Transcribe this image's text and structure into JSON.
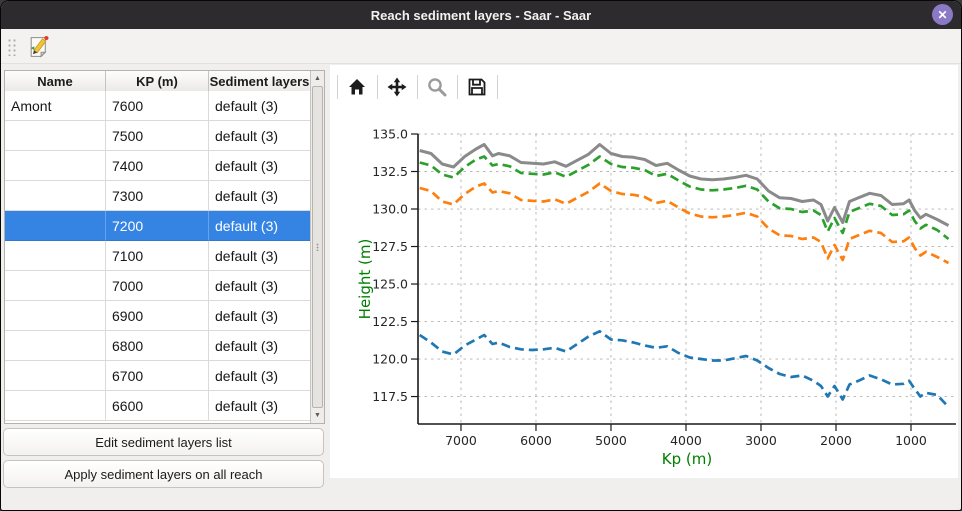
{
  "window": {
    "title": "Reach sediment layers - Saar - Saar",
    "close_glyph": "✕"
  },
  "main_toolbar": {
    "edit_icon": "edit-sediment-document-icon"
  },
  "table": {
    "columns": [
      "Name",
      "KP (m)",
      "Sediment layers"
    ],
    "rows": [
      {
        "name": "Amont",
        "kp": "7600",
        "layers": "default (3)",
        "selected": false
      },
      {
        "name": "",
        "kp": "7500",
        "layers": "default (3)",
        "selected": false
      },
      {
        "name": "",
        "kp": "7400",
        "layers": "default (3)",
        "selected": false
      },
      {
        "name": "",
        "kp": "7300",
        "layers": "default (3)",
        "selected": false
      },
      {
        "name": "",
        "kp": "7200",
        "layers": "default (3)",
        "selected": true
      },
      {
        "name": "",
        "kp": "7100",
        "layers": "default (3)",
        "selected": false
      },
      {
        "name": "",
        "kp": "7000",
        "layers": "default (3)",
        "selected": false
      },
      {
        "name": "",
        "kp": "6900",
        "layers": "default (3)",
        "selected": false
      },
      {
        "name": "",
        "kp": "6800",
        "layers": "default (3)",
        "selected": false
      },
      {
        "name": "",
        "kp": "6700",
        "layers": "default (3)",
        "selected": false
      },
      {
        "name": "",
        "kp": "6600",
        "layers": "default (3)",
        "selected": false
      }
    ],
    "scrollbar": {
      "up_glyph": "▲",
      "down_glyph": "▼"
    }
  },
  "buttons": {
    "edit_layers": "Edit sediment layers list",
    "apply_layers": "Apply sediment layers on all reach"
  },
  "plot_toolbar": {
    "icons": [
      "home-icon",
      "pan-arrows-icon",
      "zoom-magnifier-icon",
      "save-floppy-icon"
    ]
  },
  "colors": {
    "selection_blue": "#3584e4",
    "titlebar": "#2d2b2d",
    "close_button_purple": "#8b79c6",
    "axis_label_green": "#008000"
  },
  "chart_data": {
    "type": "line",
    "title": "",
    "xlabel": "Kp (m)",
    "ylabel": "Height (m)",
    "axis_label_color": "#008000",
    "grid": true,
    "x_axis_reversed": true,
    "xlim": [
      7573,
      400
    ],
    "ylim": [
      115.67,
      135.0
    ],
    "x_ticks": [
      7000,
      6000,
      5000,
      4000,
      3000,
      2000,
      1000
    ],
    "y_ticks": [
      135.0,
      132.5,
      130.0,
      127.5,
      125.0,
      122.5,
      120.0,
      117.5
    ],
    "x": [
      7550,
      7400,
      7250,
      7100,
      6950,
      6800,
      6690,
      6580,
      6500,
      6350,
      6200,
      6050,
      5900,
      5750,
      5600,
      5450,
      5300,
      5150,
      5000,
      4850,
      4700,
      4550,
      4400,
      4250,
      4100,
      3950,
      3800,
      3650,
      3500,
      3350,
      3200,
      3050,
      2900,
      2750,
      2600,
      2450,
      2300,
      2200,
      2110,
      2020,
      1910,
      1820,
      1700,
      1550,
      1400,
      1250,
      1100,
      1025,
      950,
      875,
      800,
      650,
      500
    ],
    "series": [
      {
        "name": "blue-dashed-line",
        "color": "#1f77b4",
        "style": "dashed",
        "width": 2.7,
        "values": [
          121.6,
          121.1,
          120.5,
          120.3,
          120.9,
          121.3,
          121.6,
          121.0,
          121.1,
          120.8,
          120.65,
          120.6,
          120.65,
          120.75,
          120.5,
          121.0,
          121.5,
          121.85,
          121.3,
          121.25,
          121.1,
          120.9,
          120.75,
          120.85,
          120.4,
          120.1,
          120.0,
          119.9,
          119.9,
          120.05,
          120.2,
          119.9,
          119.4,
          119.0,
          118.8,
          118.9,
          118.55,
          118.2,
          117.5,
          118.2,
          117.3,
          118.3,
          118.55,
          118.9,
          118.65,
          118.3,
          118.35,
          118.55,
          118.0,
          117.5,
          117.75,
          117.6,
          116.8
        ]
      },
      {
        "name": "orange-dashed-line",
        "color": "#ff7f0e",
        "style": "dashed",
        "width": 2.7,
        "values": [
          131.4,
          131.2,
          130.5,
          130.3,
          131.0,
          131.5,
          131.7,
          131.1,
          131.2,
          131.05,
          130.6,
          130.55,
          130.5,
          130.65,
          130.35,
          130.75,
          131.15,
          131.7,
          131.2,
          131.0,
          130.95,
          130.8,
          130.4,
          130.55,
          130.1,
          129.7,
          129.5,
          129.45,
          129.5,
          129.6,
          129.75,
          129.5,
          128.7,
          128.25,
          128.2,
          128.0,
          128.1,
          127.8,
          126.7,
          127.6,
          126.6,
          128.0,
          128.25,
          128.55,
          128.4,
          127.8,
          127.85,
          128.1,
          127.4,
          126.9,
          127.15,
          126.8,
          126.4
        ]
      },
      {
        "name": "green-dashed-line",
        "color": "#2ca02c",
        "style": "dashed",
        "width": 2.7,
        "values": [
          133.1,
          132.9,
          132.3,
          132.1,
          132.8,
          133.3,
          133.5,
          132.9,
          133.0,
          132.85,
          132.4,
          132.35,
          132.3,
          132.45,
          132.15,
          132.55,
          132.95,
          133.5,
          133.0,
          132.8,
          132.75,
          132.6,
          132.2,
          132.35,
          131.9,
          131.5,
          131.3,
          131.25,
          131.3,
          131.4,
          131.55,
          131.3,
          130.5,
          130.05,
          130.0,
          129.8,
          129.9,
          129.6,
          128.5,
          129.4,
          128.4,
          129.8,
          130.05,
          130.35,
          130.2,
          129.6,
          129.65,
          129.9,
          129.2,
          128.7,
          128.95,
          128.6,
          128.0
        ]
      },
      {
        "name": "grey-solid-line",
        "color": "#8a8a8a",
        "style": "solid",
        "width": 3,
        "values": [
          133.9,
          133.7,
          133.0,
          132.8,
          133.5,
          134.0,
          134.3,
          133.55,
          133.7,
          133.55,
          133.1,
          133.05,
          133.0,
          133.15,
          132.85,
          133.25,
          133.65,
          134.3,
          133.7,
          133.5,
          133.45,
          133.3,
          132.9,
          133.05,
          132.6,
          132.2,
          132.0,
          131.95,
          132.0,
          132.1,
          132.25,
          132.0,
          131.2,
          130.75,
          130.7,
          130.5,
          130.6,
          130.3,
          129.2,
          130.1,
          129.1,
          130.5,
          130.75,
          131.05,
          130.9,
          130.3,
          130.35,
          130.6,
          129.9,
          129.4,
          129.65,
          129.3,
          128.9
        ]
      }
    ]
  }
}
